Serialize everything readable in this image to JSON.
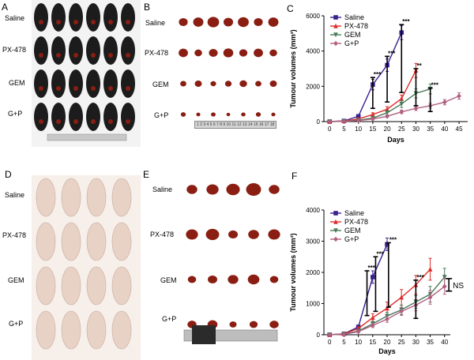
{
  "panels": {
    "A": {
      "letter": "A",
      "row_labels": [
        "Saline",
        "PX-478",
        "GEM",
        "G+P"
      ]
    },
    "B": {
      "letter": "B",
      "row_labels": [
        "Saline",
        "PX-478",
        "GEM",
        "G+P"
      ],
      "ruler_text": "1 2 3 4 5 6 7 8 9 10 11 12 13 14 15 16 17 18 19 20"
    },
    "D": {
      "letter": "D",
      "row_labels": [
        "Saline",
        "PX-478",
        "GEM",
        "G+P"
      ]
    },
    "E": {
      "letter": "E",
      "row_labels": [
        "Saline",
        "PX-478",
        "GEM",
        "G+P"
      ]
    },
    "C": {
      "letter": "C"
    },
    "F": {
      "letter": "F"
    }
  },
  "colors": {
    "saline": "#3a1f8f",
    "px478": "#e02a2a",
    "gem": "#4a7a5a",
    "gp": "#b06080",
    "mouse_black": "#1c1c1c",
    "mouse_nude": "#e8d2c6",
    "tumor_red": "#8a1e12"
  },
  "chart_data": [
    {
      "panel": "C",
      "type": "line",
      "title": "",
      "xlabel": "Days",
      "ylabel": "Tumour volumes (mm³)",
      "xlim": [
        -2,
        48
      ],
      "ylim": [
        0,
        6000
      ],
      "xticks": [
        0,
        5,
        10,
        15,
        20,
        25,
        30,
        35,
        40,
        45
      ],
      "yticks": [
        0,
        2000,
        4000,
        6000
      ],
      "legend_position": "top-left",
      "series": [
        {
          "name": "Saline",
          "color_key": "saline",
          "marker": "square",
          "x": [
            0,
            5,
            10,
            15,
            20,
            25
          ],
          "y": [
            0,
            40,
            300,
            2100,
            3200,
            5050
          ],
          "err": [
            0,
            20,
            80,
            300,
            350,
            400
          ]
        },
        {
          "name": "PX-478",
          "color_key": "px478",
          "marker": "triangle-up",
          "x": [
            0,
            5,
            10,
            15,
            20,
            25,
            30
          ],
          "y": [
            0,
            30,
            150,
            400,
            700,
            1300,
            2900
          ],
          "err": [
            0,
            15,
            50,
            100,
            150,
            200,
            400
          ]
        },
        {
          "name": "GEM",
          "color_key": "gem",
          "marker": "triangle-down",
          "x": [
            0,
            5,
            10,
            15,
            20,
            25,
            30,
            35
          ],
          "y": [
            0,
            20,
            80,
            200,
            500,
            1000,
            1600,
            1850
          ],
          "err": [
            0,
            10,
            30,
            60,
            120,
            200,
            250,
            280
          ]
        },
        {
          "name": "G+P",
          "color_key": "gp",
          "marker": "diamond",
          "x": [
            0,
            5,
            10,
            15,
            20,
            25,
            30,
            35,
            40,
            45
          ],
          "y": [
            0,
            15,
            60,
            150,
            300,
            550,
            750,
            900,
            1100,
            1450
          ],
          "err": [
            0,
            10,
            25,
            50,
            70,
            100,
            120,
            140,
            150,
            180
          ]
        }
      ],
      "annotations": [
        {
          "text": "***",
          "x": 15,
          "y": 2500
        },
        {
          "text": "***",
          "x": 20,
          "y": 3700
        },
        {
          "text": "***",
          "x": 25,
          "y": 5500
        },
        {
          "text": "**",
          "x": 30,
          "y": 3000
        },
        {
          "text": "***",
          "x": 35,
          "y": 1900
        }
      ]
    },
    {
      "panel": "F",
      "type": "line",
      "title": "",
      "xlabel": "Days",
      "ylabel": "Tumour volumes (mm³)",
      "xlim": [
        -2,
        42
      ],
      "ylim": [
        0,
        4000
      ],
      "xticks": [
        0,
        5,
        10,
        15,
        20,
        25,
        30,
        35,
        40
      ],
      "yticks": [
        0,
        1000,
        2000,
        3000,
        4000
      ],
      "legend_position": "top-left",
      "series": [
        {
          "name": "Saline",
          "color_key": "saline",
          "marker": "square",
          "x": [
            0,
            5,
            10,
            15,
            20
          ],
          "y": [
            0,
            30,
            250,
            1850,
            2900
          ],
          "err": [
            0,
            15,
            60,
            200,
            200
          ]
        },
        {
          "name": "PX-478",
          "color_key": "px478",
          "marker": "triangle-up",
          "x": [
            0,
            5,
            10,
            15,
            20,
            25,
            30,
            35
          ],
          "y": [
            0,
            30,
            200,
            550,
            850,
            1200,
            1600,
            2100
          ],
          "err": [
            0,
            15,
            50,
            120,
            200,
            250,
            300,
            350
          ]
        },
        {
          "name": "GEM",
          "color_key": "gem",
          "marker": "triangle-down",
          "x": [
            0,
            5,
            10,
            15,
            20,
            25,
            30,
            35,
            40
          ],
          "y": [
            0,
            20,
            120,
            350,
            600,
            800,
            1050,
            1300,
            1850
          ],
          "err": [
            0,
            10,
            40,
            80,
            120,
            150,
            200,
            250,
            280
          ]
        },
        {
          "name": "G+P",
          "color_key": "gp",
          "marker": "diamond",
          "x": [
            0,
            5,
            10,
            15,
            20,
            25,
            30,
            35,
            40
          ],
          "y": [
            0,
            15,
            100,
            300,
            500,
            750,
            950,
            1200,
            1550
          ],
          "err": [
            0,
            10,
            30,
            70,
            100,
            130,
            180,
            220,
            250
          ]
        }
      ],
      "annotations": [
        {
          "text": "***",
          "x": 13,
          "y": 2050
        },
        {
          "text": "***",
          "x": 16,
          "y": 2500
        },
        {
          "text": "***",
          "x": 20.5,
          "y": 2950
        },
        {
          "text": "***",
          "x": 30,
          "y": 1750
        },
        {
          "text": "NS",
          "x": 43,
          "y": 1550
        }
      ]
    }
  ]
}
